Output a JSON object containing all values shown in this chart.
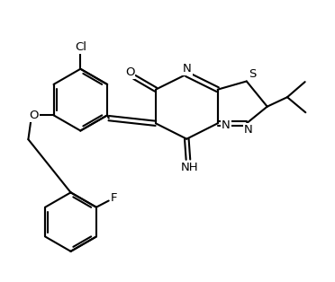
{
  "background_color": "#ffffff",
  "line_color": "#000000",
  "line_width": 1.5,
  "font_size": 9,
  "figsize": [
    3.72,
    3.14
  ],
  "dpi": 100,
  "xlim": [
    -0.5,
    10.5
  ],
  "ylim": [
    0.3,
    9.8
  ]
}
